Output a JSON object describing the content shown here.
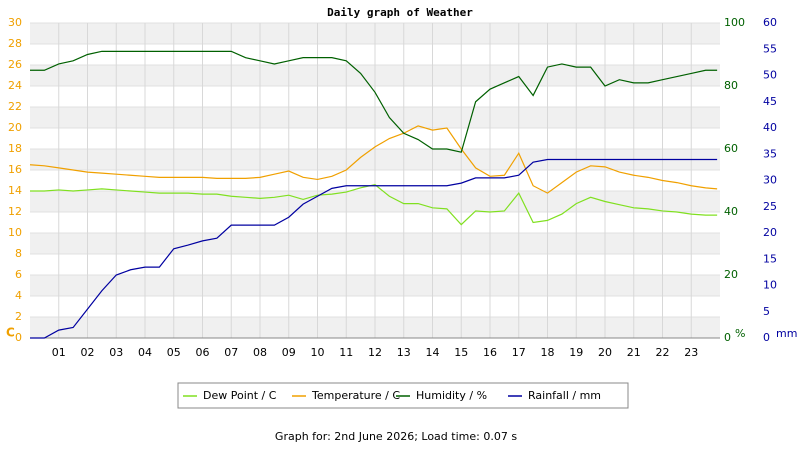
{
  "chart_data": {
    "type": "line",
    "title": "Daily graph of Weather",
    "y_label": "C",
    "y2_label": "%",
    "y3_label": "mm",
    "footer": "Graph for: 2nd June 2026; Load time: 0.07 s",
    "x": [
      0,
      0.5,
      1,
      1.5,
      2,
      2.5,
      3,
      3.5,
      4,
      4.5,
      5,
      5.5,
      6,
      6.5,
      7,
      7.5,
      8,
      8.5,
      9,
      9.5,
      10,
      10.5,
      11,
      11.5,
      12,
      12.5,
      13,
      13.5,
      14,
      14.5,
      15,
      15.5,
      16,
      16.5,
      17,
      17.5,
      18,
      18.5,
      19,
      19.5,
      20,
      20.5,
      21,
      21.5,
      22,
      22.5,
      23,
      23.5,
      23.9
    ],
    "xlim": [
      0,
      24
    ],
    "xticks": [
      {
        "value": 1,
        "label": "01"
      },
      {
        "value": 2,
        "label": "02"
      },
      {
        "value": 3,
        "label": "03"
      },
      {
        "value": 4,
        "label": "04"
      },
      {
        "value": 5,
        "label": "05"
      },
      {
        "value": 6,
        "label": "06"
      },
      {
        "value": 7,
        "label": "07"
      },
      {
        "value": 8,
        "label": "08"
      },
      {
        "value": 9,
        "label": "09"
      },
      10,
      11,
      12,
      13,
      14,
      15,
      16,
      17,
      18,
      19,
      20,
      21,
      22,
      23
    ],
    "ylim": [
      0,
      30
    ],
    "yticks": [
      0,
      2,
      4,
      6,
      8,
      10,
      12,
      14,
      16,
      18,
      20,
      22,
      24,
      26,
      28,
      30
    ],
    "y2lim": [
      0,
      100
    ],
    "y2ticks": [
      0,
      20,
      40,
      60,
      80,
      100
    ],
    "y3lim": [
      0,
      60
    ],
    "y3ticks": [
      0,
      5,
      10,
      15,
      20,
      25,
      30,
      35,
      40,
      45,
      50,
      55,
      60
    ],
    "grid": true,
    "series": [
      {
        "name": "Dew Point / C",
        "color": "#80e020",
        "axis": "y",
        "values": [
          14,
          14,
          14.1,
          14,
          14.1,
          14.2,
          14.1,
          14,
          13.9,
          13.8,
          13.8,
          13.8,
          13.7,
          13.7,
          13.5,
          13.4,
          13.3,
          13.4,
          13.6,
          13.2,
          13.6,
          13.7,
          13.9,
          14.3,
          14.6,
          13.5,
          12.8,
          12.8,
          12.4,
          12.3,
          10.8,
          12.1,
          12,
          12.1,
          13.8,
          11,
          11.2,
          11.8,
          12.8,
          13.4,
          13,
          12.7,
          12.4,
          12.3,
          12.1,
          12,
          11.8,
          11.7,
          11.7
        ]
      },
      {
        "name": "Temperature / C",
        "color": "#f0a000",
        "axis": "y",
        "values": [
          16.5,
          16.4,
          16.2,
          16,
          15.8,
          15.7,
          15.6,
          15.5,
          15.4,
          15.3,
          15.3,
          15.3,
          15.3,
          15.2,
          15.2,
          15.2,
          15.3,
          15.6,
          15.9,
          15.3,
          15.1,
          15.4,
          16,
          17.2,
          18.2,
          19,
          19.5,
          20.2,
          19.8,
          20,
          18,
          16.2,
          15.4,
          15.5,
          17.6,
          14.5,
          13.8,
          14.8,
          15.8,
          16.4,
          16.3,
          15.8,
          15.5,
          15.3,
          15,
          14.8,
          14.5,
          14.3,
          14.2
        ]
      },
      {
        "name": "Humidity / %",
        "color": "#006000",
        "axis": "y2",
        "values": [
          85,
          85,
          87,
          88,
          90,
          91,
          91,
          91,
          91,
          91,
          91,
          91,
          91,
          91,
          91,
          89,
          88,
          87,
          88,
          89,
          89,
          89,
          88,
          84,
          78,
          70,
          65,
          63,
          60,
          60,
          59,
          75,
          79,
          81,
          83,
          77,
          86,
          87,
          86,
          86,
          80,
          82,
          81,
          81,
          82,
          83,
          84,
          85,
          85
        ]
      },
      {
        "name": "Rainfall / mm",
        "color": "#0000a0",
        "axis": "y3",
        "values": [
          0,
          0,
          1.5,
          2,
          5.5,
          9,
          12,
          13,
          13.5,
          13.5,
          17,
          17.7,
          18.5,
          19,
          21.5,
          21.5,
          21.5,
          21.5,
          23,
          25.5,
          27,
          28.5,
          29,
          29,
          29,
          29,
          29,
          29,
          29,
          29,
          29.5,
          30.5,
          30.5,
          30.5,
          31,
          33.5,
          34,
          34,
          34,
          34,
          34,
          34,
          34,
          34,
          34,
          34,
          34,
          34,
          34
        ]
      }
    ]
  }
}
